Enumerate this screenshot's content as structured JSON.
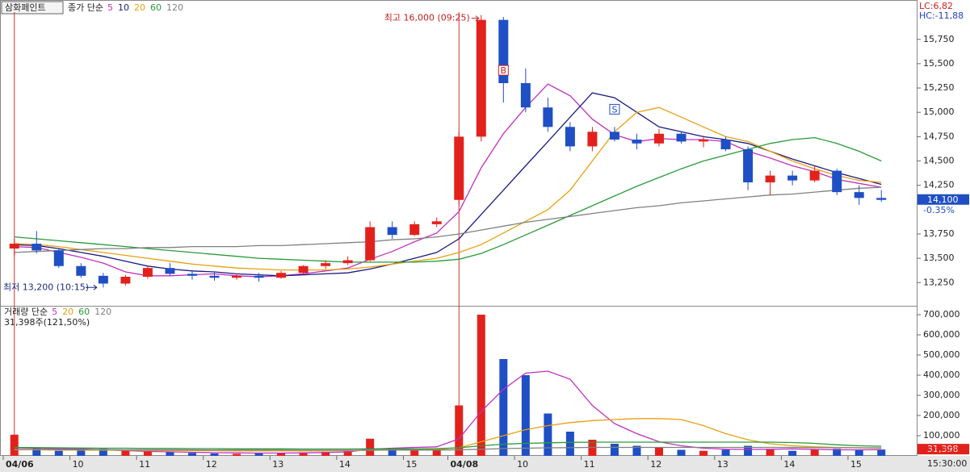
{
  "chart_data": [
    {
      "type": "candlestick",
      "title": "삼화페인트",
      "legend_title": "종가 단순",
      "categories": [
        "04/06",
        null,
        null,
        "10",
        null,
        null,
        "11",
        null,
        null,
        "12",
        null,
        null,
        "13",
        null,
        null,
        "14",
        null,
        null,
        "15",
        null,
        "04/08",
        null,
        null,
        "10",
        null,
        null,
        "11",
        null,
        null,
        "12",
        null,
        null,
        "13",
        null,
        null,
        "14",
        null,
        null,
        "15",
        null
      ],
      "open": [
        13600,
        13650,
        13580,
        13420,
        13320,
        13240,
        13310,
        13400,
        13340,
        13320,
        13300,
        13320,
        13300,
        13350,
        13420,
        13450,
        13480,
        13820,
        13740,
        13850,
        14100,
        14750,
        15950,
        15300,
        15050,
        14850,
        14650,
        14800,
        14720,
        14680,
        14780,
        14700,
        14720,
        14620,
        14280,
        14350,
        14300,
        14400,
        14180,
        14120
      ],
      "high": [
        13700,
        13780,
        13600,
        13450,
        13350,
        13330,
        13420,
        13450,
        13380,
        13360,
        13340,
        13350,
        13370,
        13430,
        13480,
        13520,
        13880,
        13880,
        13880,
        13920,
        14800,
        16000,
        15980,
        15450,
        15150,
        14900,
        14850,
        14850,
        14780,
        14830,
        14800,
        14760,
        14750,
        14650,
        14400,
        14400,
        14450,
        14420,
        14250,
        14200
      ],
      "low": [
        13520,
        13550,
        13400,
        13300,
        13200,
        13220,
        13290,
        13320,
        13280,
        13270,
        13280,
        13260,
        13290,
        13340,
        13390,
        13430,
        13470,
        13700,
        13730,
        13820,
        14050,
        14700,
        15100,
        15000,
        14800,
        14600,
        14600,
        14700,
        14620,
        14650,
        14680,
        14640,
        14600,
        14200,
        14150,
        14250,
        14280,
        14150,
        14050,
        14080
      ],
      "close": [
        13650,
        13580,
        13420,
        13320,
        13240,
        13310,
        13400,
        13340,
        13320,
        13300,
        13320,
        13300,
        13350,
        13420,
        13450,
        13480,
        13820,
        13740,
        13850,
        13880,
        14750,
        15950,
        15300,
        15050,
        14850,
        14650,
        14800,
        14720,
        14680,
        14780,
        14700,
        14720,
        14620,
        14280,
        14350,
        14300,
        14400,
        14180,
        14120,
        14100
      ],
      "up_color": "#e3211c",
      "down_color": "#1f4fc4",
      "series": [
        {
          "name": "5",
          "color": "#c030c0",
          "values": [
            13620,
            13610,
            13560,
            13510,
            13450,
            13360,
            13320,
            13320,
            13330,
            13340,
            13320,
            13310,
            13320,
            13340,
            13370,
            13400,
            13490,
            13570,
            13670,
            13760,
            13980,
            14430,
            14780,
            15050,
            15290,
            15170,
            14930,
            14770,
            14700,
            14730,
            14720,
            14720,
            14700,
            14600,
            14530,
            14450,
            14390,
            14310,
            14270,
            14230
          ]
        },
        {
          "name": "10",
          "color": "#1a1a80",
          "values": [
            13640,
            13630,
            13600,
            13560,
            13520,
            13470,
            13420,
            13390,
            13370,
            13360,
            13340,
            13330,
            13320,
            13330,
            13340,
            13350,
            13390,
            13440,
            13500,
            13560,
            13700,
            13950,
            14200,
            14450,
            14700,
            14950,
            15200,
            15150,
            15000,
            14850,
            14800,
            14750,
            14720,
            14680,
            14600,
            14520,
            14450,
            14380,
            14320,
            14260
          ]
        },
        {
          "name": "20",
          "color": "#e8a010",
          "values": [
            13650,
            13640,
            13620,
            13590,
            13560,
            13530,
            13500,
            13470,
            13440,
            13420,
            13400,
            13390,
            13380,
            13380,
            13380,
            13390,
            13410,
            13440,
            13470,
            13500,
            13560,
            13640,
            13760,
            13880,
            14000,
            14200,
            14500,
            14800,
            15000,
            15050,
            14950,
            14850,
            14750,
            14700,
            14600,
            14500,
            14420,
            14350,
            14300,
            14280
          ]
        },
        {
          "name": "60",
          "color": "#2a9a3a",
          "values": [
            13720,
            13700,
            13680,
            13660,
            13640,
            13620,
            13600,
            13580,
            13560,
            13540,
            13520,
            13500,
            13490,
            13480,
            13470,
            13460,
            13460,
            13460,
            13460,
            13470,
            13490,
            13550,
            13640,
            13740,
            13840,
            13940,
            14040,
            14140,
            14240,
            14330,
            14420,
            14500,
            14560,
            14620,
            14680,
            14720,
            14740,
            14680,
            14600,
            14500
          ]
        },
        {
          "name": "120",
          "color": "#808080",
          "values": [
            13560,
            13570,
            13580,
            13590,
            13600,
            13600,
            13610,
            13610,
            13620,
            13620,
            13620,
            13630,
            13630,
            13640,
            13650,
            13660,
            13670,
            13690,
            13700,
            13720,
            13750,
            13790,
            13830,
            13870,
            13900,
            13930,
            13960,
            13990,
            14020,
            14040,
            14070,
            14090,
            14110,
            14130,
            14150,
            14160,
            14180,
            14200,
            14220,
            14230
          ]
        }
      ],
      "ylim": [
        13020,
        16030
      ],
      "yticks": [
        {
          "value": 13250,
          "label": "13,250"
        },
        {
          "value": 13500,
          "label": "13,500"
        },
        {
          "value": 13750,
          "label": "13,750"
        },
        {
          "value": 14250,
          "label": "14,250"
        },
        {
          "value": 14500,
          "label": "14,500"
        },
        {
          "value": 14750,
          "label": "14,750"
        },
        {
          "value": 15000,
          "label": "15,000"
        },
        {
          "value": 15250,
          "label": "15,250"
        },
        {
          "value": 15500,
          "label": "15,500"
        },
        {
          "value": 15750,
          "label": "15,750"
        }
      ],
      "high_label": "최고 16,000 (09:25)",
      "high_index": 21,
      "low_label": "최저 13,200 (10:15)",
      "low_index": 4,
      "buy_marker": "B",
      "buy_index": 22,
      "sell_marker": "S",
      "sell_index": 27,
      "lc": "LC:6,82",
      "hc": "HC:-11,88",
      "last_price": {
        "value": 14100,
        "label": "14,100"
      },
      "change": "-0.35%"
    },
    {
      "type": "bar",
      "legend_title": "거래량 단순",
      "info": "31,398주(121,50%)",
      "values": [
        105000,
        40000,
        25000,
        30000,
        35000,
        25000,
        20000,
        18000,
        15000,
        12000,
        10000,
        15000,
        12000,
        18000,
        20000,
        25000,
        85000,
        40000,
        30000,
        35000,
        250000,
        700000,
        480000,
        400000,
        210000,
        120000,
        80000,
        60000,
        50000,
        40000,
        30000,
        25000,
        30000,
        50000,
        30000,
        25000,
        30000,
        35000,
        30000,
        31398
      ],
      "series": [
        {
          "name": "5",
          "color": "#c030c0",
          "values": [
            40000,
            38000,
            36000,
            34000,
            30000,
            26000,
            22000,
            20000,
            18000,
            16000,
            15000,
            14000,
            14000,
            15000,
            17000,
            20000,
            33000,
            38000,
            42000,
            45000,
            85000,
            220000,
            330000,
            410000,
            420000,
            380000,
            250000,
            160000,
            110000,
            70000,
            50000,
            38000,
            33000,
            32000,
            33000,
            35000,
            32000,
            30000,
            30000,
            31000
          ]
        },
        {
          "name": "20",
          "color": "#e8a010",
          "values": [
            30000,
            30000,
            29000,
            29000,
            28000,
            28000,
            27000,
            27000,
            26000,
            26000,
            25000,
            25000,
            25000,
            25000,
            25000,
            26000,
            28000,
            29000,
            30000,
            32000,
            40000,
            70000,
            100000,
            130000,
            150000,
            165000,
            175000,
            180000,
            185000,
            185000,
            180000,
            150000,
            110000,
            80000,
            60000,
            50000,
            45000,
            42000,
            40000,
            38000
          ]
        },
        {
          "name": "60",
          "color": "#2a9a3a",
          "values": [
            42000,
            41000,
            40000,
            39000,
            38000,
            38000,
            37000,
            37000,
            36000,
            36000,
            35000,
            35000,
            35000,
            34000,
            34000,
            34000,
            35000,
            35000,
            35000,
            36000,
            40000,
            50000,
            58000,
            62000,
            65000,
            67000,
            68000,
            68000,
            68000,
            68000,
            68000,
            68000,
            68000,
            68000,
            68000,
            66000,
            62000,
            55000,
            50000,
            48000
          ]
        },
        {
          "name": "120",
          "color": "#808080",
          "values": [
            32000,
            32000,
            31000,
            31000,
            31000,
            30000,
            30000,
            30000,
            30000,
            29000,
            29000,
            29000,
            29000,
            28000,
            28000,
            28000,
            28000,
            29000,
            29000,
            29000,
            30000,
            33000,
            36000,
            38000,
            40000,
            41000,
            42000,
            42000,
            42000,
            42000,
            42000,
            42000,
            42000,
            42000,
            42000,
            42000,
            41000,
            41000,
            40000,
            40000
          ]
        }
      ],
      "ylim": [
        0,
        740000
      ],
      "yticks": [
        {
          "value": 100000,
          "label": "100,000"
        },
        {
          "value": 200000,
          "label": "200,000"
        },
        {
          "value": 300000,
          "label": "300,000"
        },
        {
          "value": 400000,
          "label": "400,000"
        },
        {
          "value": 500000,
          "label": "500,000"
        },
        {
          "value": 600000,
          "label": "600,000"
        },
        {
          "value": 700000,
          "label": "700,000"
        }
      ],
      "last_volume": {
        "value": 31398,
        "label": "31,398"
      },
      "ratio": "121.50%",
      "time": "15:30:00"
    }
  ]
}
